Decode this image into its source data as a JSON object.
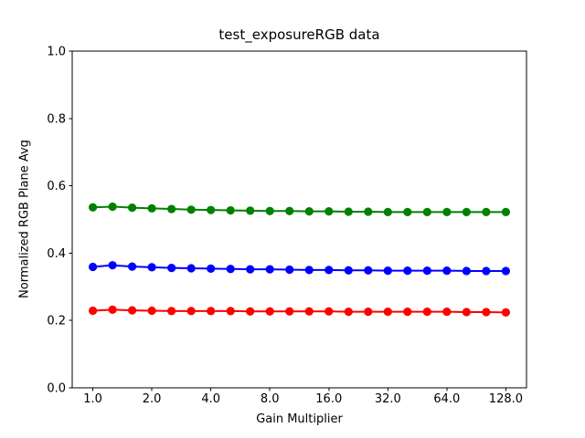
{
  "window": {
    "background": "#ffffff"
  },
  "chart_data": {
    "type": "line",
    "title": "test_exposureRGB data",
    "xlabel": "Gain Multiplier",
    "ylabel": "Normalized RGB Plane Avg",
    "x_scale": "log2",
    "xlim": [
      0.7846,
      163.14
    ],
    "ylim": [
      0.0,
      1.0
    ],
    "grid": false,
    "legend_position": "none",
    "axes_color": "#000000",
    "x_ticks": [
      1.0,
      2.0,
      4.0,
      8.0,
      16.0,
      32.0,
      64.0,
      128.0
    ],
    "x_tick_labels": [
      "1.0",
      "2.0",
      "4.0",
      "8.0",
      "16.0",
      "32.0",
      "64.0",
      "128.0"
    ],
    "y_ticks": [
      0.0,
      0.2,
      0.4,
      0.6,
      0.8,
      1.0
    ],
    "y_tick_labels": [
      "0.0",
      "0.2",
      "0.4",
      "0.6",
      "0.8",
      "1.0"
    ],
    "x": [
      1.0,
      1.26,
      1.587,
      2.0,
      2.52,
      3.175,
      4.0,
      5.04,
      6.35,
      8.0,
      10.079,
      12.699,
      16.0,
      20.159,
      25.398,
      32.0,
      40.317,
      50.797,
      64.0,
      80.635,
      101.594,
      128.0
    ],
    "series": [
      {
        "name": "green",
        "color": "#008000",
        "marker": "circle",
        "values": [
          0.536,
          0.538,
          0.535,
          0.533,
          0.531,
          0.529,
          0.528,
          0.527,
          0.526,
          0.525,
          0.525,
          0.524,
          0.524,
          0.523,
          0.523,
          0.522,
          0.522,
          0.522,
          0.522,
          0.522,
          0.522,
          0.522
        ]
      },
      {
        "name": "blue",
        "color": "#0000ff",
        "marker": "circle",
        "values": [
          0.359,
          0.364,
          0.36,
          0.358,
          0.356,
          0.355,
          0.354,
          0.353,
          0.352,
          0.352,
          0.351,
          0.35,
          0.35,
          0.349,
          0.349,
          0.348,
          0.348,
          0.348,
          0.348,
          0.347,
          0.347,
          0.347
        ]
      },
      {
        "name": "red",
        "color": "#ff0000",
        "marker": "circle",
        "values": [
          0.229,
          0.232,
          0.23,
          0.229,
          0.228,
          0.228,
          0.228,
          0.228,
          0.227,
          0.227,
          0.227,
          0.227,
          0.227,
          0.226,
          0.226,
          0.226,
          0.226,
          0.226,
          0.226,
          0.225,
          0.225,
          0.224
        ]
      }
    ]
  }
}
